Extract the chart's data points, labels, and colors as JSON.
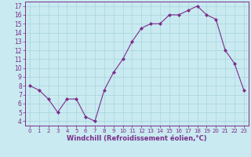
{
  "x": [
    0,
    1,
    2,
    3,
    4,
    5,
    6,
    7,
    8,
    9,
    10,
    11,
    12,
    13,
    14,
    15,
    16,
    17,
    18,
    19,
    20,
    21,
    22,
    23
  ],
  "y": [
    8,
    7.5,
    6.5,
    5,
    6.5,
    6.5,
    4.5,
    4,
    7.5,
    9.5,
    11,
    13,
    14.5,
    15,
    15,
    16,
    16,
    16.5,
    17,
    16,
    15.5,
    12,
    10.5,
    7.5
  ],
  "line_color": "#7b2d8b",
  "marker": "D",
  "marker_size": 2.0,
  "bg_color": "#c8eaf0",
  "grid_color": "#aad4dc",
  "xlabel": "Windchill (Refroidissement éolien,°C)",
  "xlabel_fontsize": 6.0,
  "yticks": [
    4,
    5,
    6,
    7,
    8,
    9,
    10,
    11,
    12,
    13,
    14,
    15,
    16,
    17
  ],
  "xticks": [
    0,
    1,
    2,
    3,
    4,
    5,
    6,
    7,
    8,
    9,
    10,
    11,
    12,
    13,
    14,
    15,
    16,
    17,
    18,
    19,
    20,
    21,
    22,
    23
  ],
  "ylim": [
    3.5,
    17.5
  ],
  "xlim": [
    -0.5,
    23.5
  ],
  "tick_fontsize": 5.5,
  "axis_label_color": "#7b2d8b",
  "tick_label_color": "#7b2d8b",
  "spine_color": "#7b2d8b"
}
